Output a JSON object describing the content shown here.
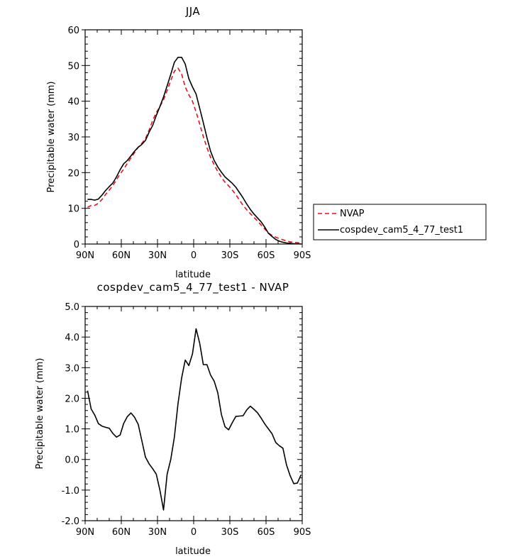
{
  "chart_data": [
    {
      "type": "line",
      "title": "JJA",
      "xlabel": "latitude",
      "ylabel": "Precipitable water (mm)",
      "x_tick_labels": [
        "90N",
        "60N",
        "30N",
        "0",
        "30S",
        "60S",
        "90S"
      ],
      "x_ticks": [
        90,
        60,
        30,
        0,
        -30,
        -60,
        -90
      ],
      "xlim": [
        90,
        -90
      ],
      "ylim": [
        0,
        60
      ],
      "y_ticks": [
        0,
        10,
        20,
        30,
        40,
        50,
        60
      ],
      "y_tick_labels": [
        "0",
        "10",
        "20",
        "30",
        "40",
        "50",
        "60"
      ],
      "x": [
        88,
        85,
        82,
        79,
        76,
        73,
        70,
        67,
        64,
        61,
        58,
        55,
        52,
        49,
        46,
        43,
        40,
        37,
        34,
        31,
        28,
        25,
        22,
        19,
        16,
        13,
        10,
        7,
        4,
        1,
        -2,
        -5,
        -8,
        -11,
        -14,
        -17,
        -20,
        -23,
        -26,
        -29,
        -32,
        -35,
        -38,
        -41,
        -44,
        -47,
        -50,
        -53,
        -56,
        -59,
        -62,
        -65,
        -68,
        -71,
        -74,
        -77,
        -80,
        -83,
        -86,
        -89
      ],
      "series": [
        {
          "name": "NVAP",
          "color": "#e8101a",
          "dash": "dashed",
          "values": [
            10.3,
            10.8,
            10.8,
            11.4,
            12.5,
            13.9,
            15.1,
            16.4,
            18.0,
            19.6,
            21.0,
            22.6,
            24.1,
            25.6,
            27.1,
            28.2,
            29.5,
            31.9,
            34.6,
            36.8,
            38.5,
            40.4,
            43.0,
            45.8,
            48.4,
            49.3,
            47.6,
            44.0,
            41.8,
            40.0,
            37.0,
            33.6,
            30.1,
            27.0,
            24.3,
            22.2,
            20.3,
            18.7,
            17.3,
            16.3,
            15.1,
            13.8,
            12.3,
            10.8,
            9.6,
            8.5,
            7.5,
            6.4,
            5.3,
            4.2,
            3.1,
            2.4,
            1.9,
            1.5,
            1.2,
            0.9,
            0.6,
            0.5,
            0.4,
            0.3
          ]
        },
        {
          "name": "cospdev_cam5_4_77_test1",
          "color": "#000000",
          "dash": "solid",
          "values": [
            12.5,
            12.5,
            12.3,
            12.6,
            13.7,
            15.0,
            16.1,
            17.1,
            18.8,
            20.8,
            22.5,
            23.4,
            24.7,
            26.0,
            27.1,
            27.9,
            29.0,
            31.3,
            33.2,
            36.0,
            38.5,
            41.2,
            44.3,
            47.5,
            50.9,
            52.3,
            52.3,
            50.4,
            46.3,
            44.0,
            42.0,
            38.0,
            34.0,
            29.8,
            26.0,
            23.4,
            21.6,
            20.1,
            18.8,
            17.9,
            17.0,
            15.9,
            14.4,
            12.9,
            11.2,
            9.7,
            8.4,
            7.3,
            6.2,
            4.7,
            3.0,
            2.1,
            1.3,
            0.8,
            0.5,
            0.3,
            0.2,
            0.1,
            0.1,
            0.0
          ]
        }
      ],
      "legend": {
        "placement": "right",
        "entries": [
          "NVAP",
          "cospdev_cam5_4_77_test1"
        ]
      }
    },
    {
      "type": "line",
      "title": "cospdev_cam5_4_77_test1 - NVAP",
      "xlabel": "latitude",
      "ylabel": "Precipitable water (mm)",
      "x_tick_labels": [
        "90N",
        "60N",
        "30N",
        "0",
        "30S",
        "60S",
        "90S"
      ],
      "x_ticks": [
        90,
        60,
        30,
        0,
        -30,
        -60,
        -90
      ],
      "xlim": [
        90,
        -90
      ],
      "ylim": [
        -2.0,
        5.0
      ],
      "y_ticks": [
        -2.0,
        -1.0,
        0.0,
        1.0,
        2.0,
        3.0,
        4.0,
        5.0
      ],
      "y_tick_labels": [
        "-2.0",
        "-1.0",
        "0.0",
        "1.0",
        "2.0",
        "3.0",
        "4.0",
        "5.0"
      ],
      "x": [
        88,
        85,
        82,
        79,
        76,
        73,
        70,
        67,
        64,
        61,
        58,
        55,
        52,
        49,
        46,
        43,
        40,
        37,
        34,
        31,
        28,
        25,
        22,
        19,
        16,
        13,
        10,
        7,
        4,
        1,
        -2,
        -5,
        -8,
        -11,
        -14,
        -17,
        -20,
        -23,
        -26,
        -29,
        -32,
        -35,
        -38,
        -41,
        -44,
        -47,
        -50,
        -53,
        -56,
        -59,
        -62,
        -65,
        -68,
        -71,
        -74,
        -77,
        -80,
        -83,
        -86,
        -89
      ],
      "series": [
        {
          "name": "cospdev_cam5_4_77_test1 - NVAP",
          "color": "#000000",
          "dash": "solid",
          "values": [
            2.25,
            1.65,
            1.45,
            1.17,
            1.09,
            1.05,
            1.02,
            0.85,
            0.73,
            0.8,
            1.18,
            1.4,
            1.52,
            1.38,
            1.15,
            0.62,
            0.08,
            -0.14,
            -0.3,
            -0.48,
            -1.0,
            -1.65,
            -0.48,
            0.0,
            0.73,
            1.82,
            2.66,
            3.25,
            3.07,
            3.45,
            4.27,
            3.8,
            3.1,
            3.1,
            2.76,
            2.56,
            2.18,
            1.47,
            1.07,
            0.97,
            1.2,
            1.41,
            1.42,
            1.43,
            1.62,
            1.74,
            1.64,
            1.52,
            1.35,
            1.16,
            1.0,
            0.84,
            0.56,
            0.45,
            0.37,
            -0.18,
            -0.53,
            -0.79,
            -0.77,
            -0.5
          ]
        }
      ]
    }
  ]
}
